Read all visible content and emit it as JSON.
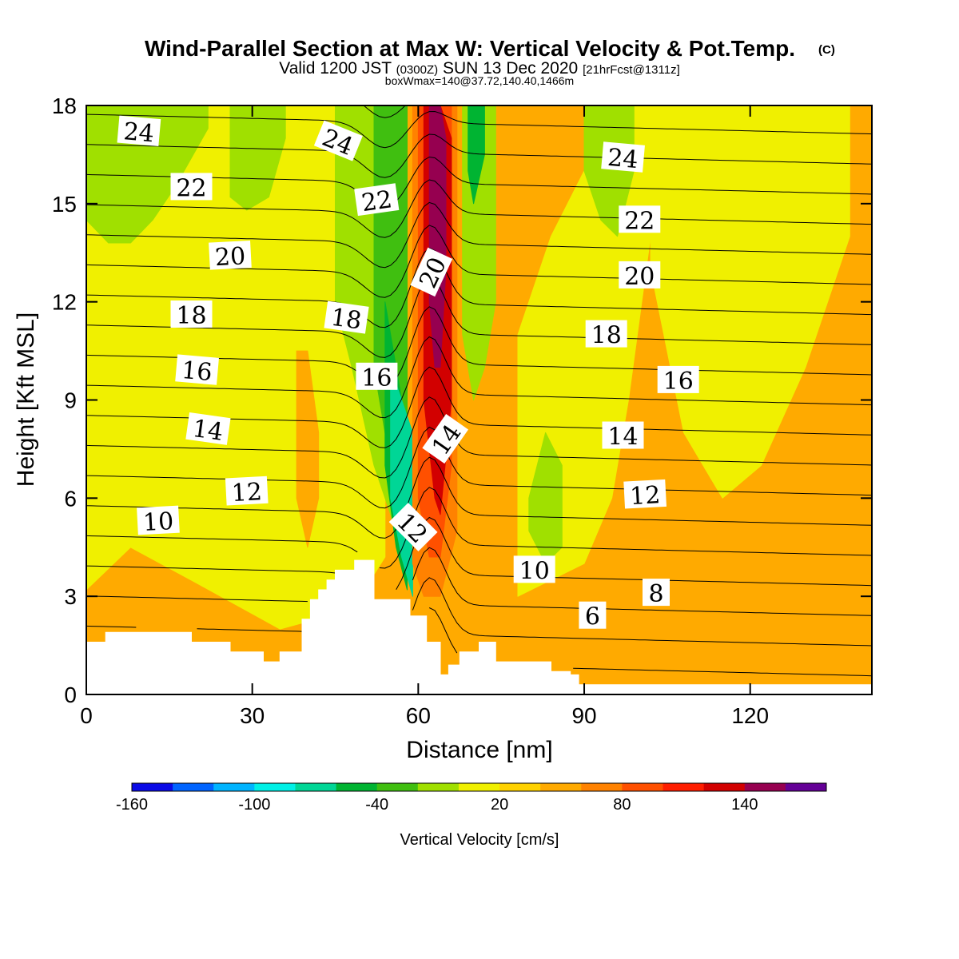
{
  "chart_data": {
    "type": "heatmap",
    "title": "Wind-Parallel Section at Max W: Vertical Velocity & Pot.Temp.",
    "title_mark": "(C)",
    "subtitle": {
      "valid_label": "Valid 1200 JST",
      "utc": "(0300Z)",
      "date": "SUN 13 Dec 2020",
      "forecast": "[21hrFcst@1311z]"
    },
    "box_note": "boxWmax=140@37.72,140.40,1466m",
    "xlabel": "Distance [nm]",
    "ylabel": "Height [Kft MSL]",
    "xlim": [
      0,
      142
    ],
    "ylim": [
      0,
      18
    ],
    "x_ticks": [
      0,
      30,
      60,
      90,
      120
    ],
    "y_ticks": [
      0,
      3,
      6,
      9,
      12,
      15,
      18
    ],
    "colorbar": {
      "label": "Vertical Velocity [cm/s]",
      "tick_values": [
        -160,
        -100,
        -40,
        20,
        80,
        140
      ],
      "tick_labels": [
        "-160",
        "-100",
        "-40",
        "20",
        "80",
        "140"
      ],
      "colors": [
        "#0a0ae6",
        "#0064ff",
        "#00b4ff",
        "#00f0e6",
        "#00d696",
        "#00b432",
        "#40bf10",
        "#a0e000",
        "#f0f000",
        "#ffd200",
        "#ffaa00",
        "#ff8200",
        "#ff5000",
        "#ff1e00",
        "#d20000",
        "#960050",
        "#640096"
      ]
    },
    "vertical_velocity_field": {
      "background_level": 20,
      "features": [
        {
          "x": [
            0,
            8,
            20,
            35,
            48,
            54
          ],
          "top": [
            18,
            18,
            18,
            18,
            18,
            18
          ],
          "bottom": [
            3.2,
            4.5,
            3.4,
            2.0,
            2.6,
            4.2
          ],
          "value": -10
        },
        {
          "x": [
            0,
            4,
            8,
            12,
            16,
            22
          ],
          "top": [
            18,
            18,
            18,
            18,
            18,
            18
          ],
          "bottom": [
            14.5,
            13.8,
            13.8,
            14.5,
            15.5,
            17.3
          ],
          "value": -30
        },
        {
          "x": [
            26,
            29,
            33,
            36
          ],
          "top": [
            18,
            18,
            18,
            18
          ],
          "bottom": [
            15.2,
            14.8,
            15.2,
            17.0
          ],
          "value": -30
        },
        {
          "x": [
            45,
            48,
            52,
            56,
            58
          ],
          "top": [
            18,
            18,
            18,
            18,
            18
          ],
          "bottom": [
            12,
            10,
            7,
            5,
            4.2
          ],
          "value": -30
        },
        {
          "x": [
            52,
            55,
            58
          ],
          "top": [
            18,
            18,
            18
          ],
          "bottom": [
            10,
            7,
            4.5
          ],
          "value": -50
        },
        {
          "x": [
            54,
            56,
            58
          ],
          "top": [
            12,
            10,
            8
          ],
          "bottom": [
            7,
            4.5,
            3.2
          ],
          "value": -70
        },
        {
          "x": [
            55,
            57,
            59
          ],
          "top": [
            10,
            9,
            8
          ],
          "bottom": [
            6,
            4.2,
            3.0
          ],
          "value": -100
        },
        {
          "x": [
            59,
            61,
            64,
            67
          ],
          "top": [
            18,
            18,
            18,
            18
          ],
          "bottom": [
            4.0,
            3.0,
            3.0,
            5.0
          ],
          "value": 40
        },
        {
          "x": [
            60,
            62,
            64,
            66
          ],
          "top": [
            18,
            18,
            18,
            18
          ],
          "bottom": [
            6.0,
            4.2,
            4.2,
            7.0
          ],
          "value": 70
        },
        {
          "x": [
            61,
            63,
            64,
            66
          ],
          "top": [
            18,
            18,
            18,
            17
          ],
          "bottom": [
            9.0,
            6.0,
            5.5,
            9.0
          ],
          "value": 100
        },
        {
          "x": [
            62,
            63,
            64,
            65
          ],
          "top": [
            18,
            18,
            18,
            17
          ],
          "bottom": [
            12,
            10,
            10,
            13
          ],
          "value": 130
        },
        {
          "x": [
            68,
            70,
            72,
            74
          ],
          "top": [
            18,
            18,
            18,
            18
          ],
          "bottom": [
            11,
            9,
            10,
            12
          ],
          "value": -40
        },
        {
          "x": [
            69,
            70,
            72
          ],
          "top": [
            18,
            18,
            18
          ],
          "bottom": [
            16,
            15,
            16.5
          ],
          "value": -80
        },
        {
          "x": [
            78,
            84,
            90,
            95,
            98,
            102
          ],
          "top": [
            11,
            14,
            16,
            18,
            18,
            18
          ],
          "bottom": [
            3,
            3.5,
            4,
            6,
            9,
            14
          ],
          "value": -10
        },
        {
          "x": [
            80,
            83,
            86
          ],
          "top": [
            6,
            8,
            7
          ],
          "bottom": [
            5,
            4,
            4.5
          ],
          "value": -30
        },
        {
          "x": [
            102,
            108,
            115,
            122,
            130,
            138
          ],
          "top": [
            18,
            18,
            18,
            18,
            18,
            18
          ],
          "bottom": [
            13,
            8,
            6,
            7,
            10,
            14
          ],
          "value": -10
        },
        {
          "x": [
            90,
            93,
            96,
            99
          ],
          "top": [
            18,
            18,
            18,
            18
          ],
          "bottom": [
            16,
            14.5,
            14.0,
            16
          ],
          "value": -30
        },
        {
          "x": [
            38,
            40,
            42
          ],
          "top": [
            10.5,
            10.5,
            8.0
          ],
          "bottom": [
            6.0,
            4.5,
            6.0
          ],
          "value": 30
        }
      ]
    },
    "potential_temperature_contours": {
      "interval": 1,
      "base": 5,
      "top": 25,
      "labels": [
        {
          "value": 24,
          "x": 9.5,
          "y": 17.2,
          "angle": 5
        },
        {
          "value": 22,
          "x": 19,
          "y": 15.5,
          "angle": 0
        },
        {
          "value": 20,
          "x": 26,
          "y": 13.4,
          "angle": -3
        },
        {
          "value": 18,
          "x": 19,
          "y": 11.6,
          "angle": 0
        },
        {
          "value": 16,
          "x": 20,
          "y": 9.9,
          "angle": 5
        },
        {
          "value": 14,
          "x": 22,
          "y": 8.1,
          "angle": 8
        },
        {
          "value": 12,
          "x": 29,
          "y": 6.2,
          "angle": -3
        },
        {
          "value": 10,
          "x": 13,
          "y": 5.3,
          "angle": -3
        },
        {
          "value": 24,
          "x": 45.5,
          "y": 16.9,
          "angle": 22
        },
        {
          "value": 22,
          "x": 52.5,
          "y": 15.1,
          "angle": -8
        },
        {
          "value": 18,
          "x": 47,
          "y": 11.5,
          "angle": 8
        },
        {
          "value": 16,
          "x": 52.5,
          "y": 9.7,
          "angle": 0
        },
        {
          "value": 20,
          "x": 62.5,
          "y": 12.9,
          "angle": -65
        },
        {
          "value": 14,
          "x": 65,
          "y": 7.8,
          "angle": -55
        },
        {
          "value": 12,
          "x": 59,
          "y": 5.1,
          "angle": 45
        },
        {
          "value": 24,
          "x": 97,
          "y": 16.4,
          "angle": 5
        },
        {
          "value": 22,
          "x": 100,
          "y": 14.5,
          "angle": 0
        },
        {
          "value": 20,
          "x": 100,
          "y": 12.8,
          "angle": 0
        },
        {
          "value": 18,
          "x": 94,
          "y": 11.0,
          "angle": 0
        },
        {
          "value": 16,
          "x": 107,
          "y": 9.6,
          "angle": 0
        },
        {
          "value": 14,
          "x": 97,
          "y": 7.9,
          "angle": 0
        },
        {
          "value": 12,
          "x": 101,
          "y": 6.1,
          "angle": -3
        },
        {
          "value": 10,
          "x": 81,
          "y": 3.8,
          "angle": 0
        },
        {
          "value": 8,
          "x": 103,
          "y": 3.1,
          "angle": 0
        },
        {
          "value": 6,
          "x": 91.5,
          "y": 2.4,
          "angle": 0
        }
      ]
    },
    "terrain": {
      "x": [
        0,
        3.5,
        3.5,
        19,
        19,
        26,
        26,
        32,
        32,
        35,
        35,
        39,
        39,
        40.5,
        40.5,
        42,
        42,
        43.5,
        43.5,
        45,
        45,
        48.5,
        48.5,
        52,
        52,
        58.5,
        58.5,
        61.5,
        61.5,
        64,
        64,
        65.5,
        65.5,
        67.5,
        67.5,
        71,
        71,
        74,
        74,
        84,
        84,
        87.5,
        87.5,
        89,
        89,
        90,
        90,
        142
      ],
      "y": [
        1.6,
        1.6,
        1.9,
        1.9,
        1.6,
        1.6,
        1.3,
        1.3,
        1.0,
        1.0,
        1.3,
        1.3,
        2.3,
        2.3,
        2.9,
        2.9,
        3.2,
        3.2,
        3.5,
        3.5,
        3.8,
        3.8,
        4.1,
        4.1,
        2.9,
        2.9,
        2.4,
        2.4,
        1.6,
        1.6,
        0.6,
        0.6,
        0.9,
        0.9,
        1.3,
        1.3,
        1.6,
        1.6,
        1.0,
        1.0,
        0.7,
        0.7,
        0.6,
        0.6,
        0.3,
        0.3,
        0.3,
        0.3
      ]
    }
  }
}
